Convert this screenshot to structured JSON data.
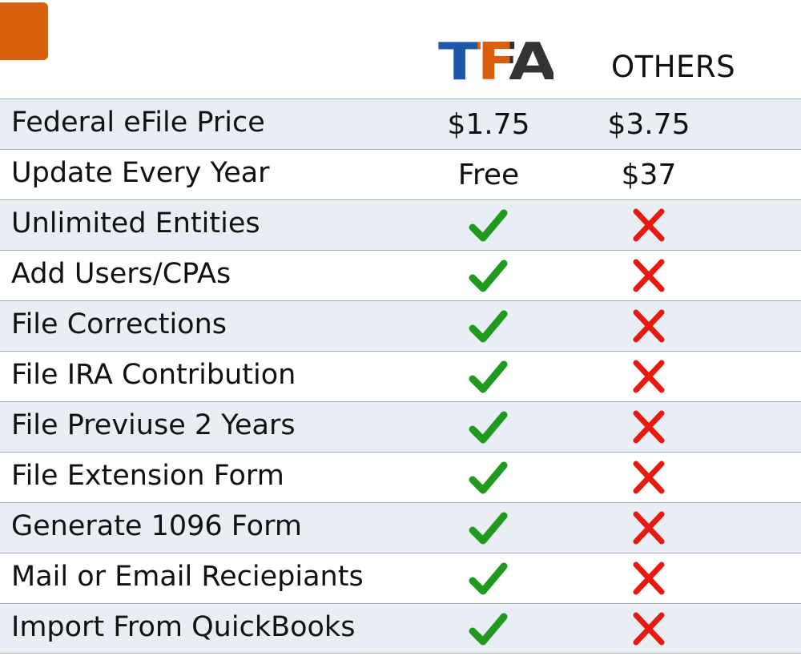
{
  "header": {
    "brand_logo_text": "TFA",
    "others_label": "OTHERS"
  },
  "colors": {
    "accent_orange": "#d95f0c",
    "logo_blue": "#1f57a8",
    "logo_dark": "#333333",
    "check_green": "#1f9a1f",
    "cross_red": "#e8190f",
    "row_alt": "#e8eef3"
  },
  "rows": [
    {
      "label": "Federal eFile Price",
      "tfa": "$1.75",
      "others": "$3.75"
    },
    {
      "label": "Update Every Year",
      "tfa": "Free",
      "others": "$37"
    },
    {
      "label": "Unlimited Entities",
      "tfa": "check-icon",
      "others": "cross-icon"
    },
    {
      "label": "Add Users/CPAs",
      "tfa": "check-icon",
      "others": "cross-icon"
    },
    {
      "label": "File Corrections",
      "tfa": "check-icon",
      "others": "cross-icon"
    },
    {
      "label": "File IRA Contribution",
      "tfa": "check-icon",
      "others": "cross-icon"
    },
    {
      "label": "File Previuse 2 Years",
      "tfa": "check-icon",
      "others": "cross-icon"
    },
    {
      "label": "File Extension Form",
      "tfa": "check-icon",
      "others": "cross-icon"
    },
    {
      "label": "Generate 1096 Form",
      "tfa": "check-icon",
      "others": "cross-icon"
    },
    {
      "label": "Mail or Email Reciepiants",
      "tfa": "check-icon",
      "others": "cross-icon"
    },
    {
      "label": "Import From QuickBooks",
      "tfa": "check-icon",
      "others": "cross-icon"
    }
  ]
}
